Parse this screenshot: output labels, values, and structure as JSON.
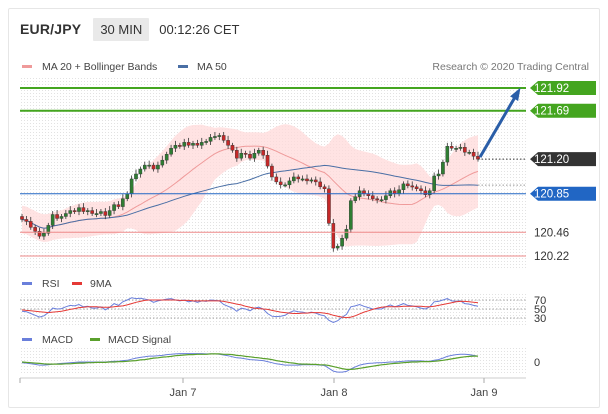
{
  "header": {
    "symbol": "EUR/JPY",
    "timeframe": "30 MIN",
    "time": "00:12:26 CET"
  },
  "legend": {
    "ma20_label": "MA 20 + Bollinger Bands",
    "ma50_label": "MA 50",
    "rsi_label": "RSI",
    "rsi_ma_label": "9MA",
    "macd_label": "MACD",
    "macd_signal_label": "MACD Signal",
    "credit": "Research © 2020 Trading Central"
  },
  "colors": {
    "bull": "#2e7d32",
    "bear": "#c62828",
    "ma20": "#ef9a9a",
    "band": "#ffdada",
    "ma50": "#4a6fa5",
    "resistance": "#44a51f",
    "pivot": "#2166c4",
    "support": "#ee8a8a",
    "arrow": "#2a5ea8",
    "current": "#333333",
    "rsi": "#6a7fdb",
    "rsi_ma": "#e53935",
    "macd": "#6a7fdb",
    "macd_signal": "#5aa02c"
  },
  "chart_data": [
    {
      "type": "candlestick",
      "series": [
        {
          "name": "MA 20 + Bollinger Bands"
        },
        {
          "name": "MA 50"
        }
      ],
      "y_ticks": [
        121.92,
        121.69,
        121.2,
        120.85,
        120.46,
        120.22
      ],
      "x_ticks": [
        "Jan 7",
        "Jan 8",
        "Jan 9"
      ],
      "levels": [
        {
          "value": 121.92,
          "label": "121.92",
          "kind": "resistance"
        },
        {
          "value": 121.69,
          "label": "121.69",
          "kind": "resistance"
        },
        {
          "value": 121.2,
          "label": "121.20",
          "kind": "current"
        },
        {
          "value": 120.85,
          "label": "120.85",
          "kind": "pivot"
        },
        {
          "value": 120.46,
          "label": "120.46",
          "kind": "support"
        },
        {
          "value": 120.22,
          "label": "120.22",
          "kind": "support"
        }
      ],
      "close": [
        120.59,
        120.57,
        120.51,
        120.47,
        120.42,
        120.45,
        120.53,
        120.64,
        120.6,
        120.62,
        120.65,
        120.68,
        120.67,
        120.71,
        120.67,
        120.68,
        120.65,
        120.65,
        120.67,
        120.63,
        120.68,
        120.74,
        120.72,
        120.8,
        120.85,
        121.0,
        121.05,
        121.1,
        121.14,
        121.14,
        121.1,
        121.14,
        121.19,
        121.25,
        121.31,
        121.34,
        121.33,
        121.37,
        121.34,
        121.36,
        121.34,
        121.37,
        121.38,
        121.42,
        121.43,
        121.44,
        121.39,
        121.34,
        121.29,
        121.21,
        121.26,
        121.25,
        121.21,
        121.26,
        121.29,
        121.24,
        121.13,
        121.02,
        120.97,
        120.94,
        120.94,
        120.98,
        121.02,
        121.0,
        121.0,
        120.98,
        120.99,
        120.97,
        120.92,
        120.9,
        120.55,
        120.3,
        120.32,
        120.4,
        120.49,
        120.78,
        120.82,
        120.88,
        120.85,
        120.83,
        120.8,
        120.79,
        120.79,
        120.83,
        120.88,
        120.85,
        120.89,
        120.95,
        120.93,
        120.92,
        120.9,
        120.88,
        120.84,
        120.88,
        121.03,
        121.05,
        121.17,
        121.33,
        121.31,
        121.31,
        121.32,
        121.27,
        121.27,
        121.23,
        121.2
      ],
      "rsi": {
        "ticks": [
          70,
          50,
          30
        ],
        "values": [
          45,
          44,
          40,
          36,
          32,
          35,
          42,
          52,
          50,
          51,
          55,
          58,
          57,
          60,
          55,
          56,
          52,
          52,
          55,
          48,
          54,
          62,
          58,
          66,
          70,
          75,
          73,
          74,
          72,
          70,
          65,
          68,
          70,
          72,
          73,
          70,
          68,
          70,
          66,
          68,
          65,
          68,
          67,
          70,
          69,
          68,
          60,
          56,
          52,
          45,
          52,
          50,
          46,
          52,
          54,
          50,
          40,
          34,
          33,
          34,
          36,
          42,
          46,
          44,
          43,
          41,
          43,
          41,
          37,
          35,
          25,
          20,
          24,
          32,
          38,
          55,
          57,
          60,
          56,
          53,
          50,
          50,
          50,
          55,
          59,
          55,
          58,
          62,
          58,
          57,
          55,
          52,
          50,
          55,
          66,
          67,
          70,
          73,
          68,
          67,
          68,
          62,
          61,
          58,
          56
        ],
        "ma9": [
          48,
          47,
          46,
          45,
          44,
          43,
          42,
          43,
          44,
          45,
          47,
          49,
          51,
          53,
          54,
          55,
          55,
          55,
          54,
          54,
          54,
          55,
          56,
          57,
          59,
          62,
          65,
          67,
          69,
          70,
          70,
          70,
          70,
          70,
          70,
          70,
          69,
          69,
          69,
          68,
          68,
          68,
          68,
          68,
          68,
          68,
          67,
          65,
          63,
          61,
          59,
          56,
          54,
          52,
          51,
          50,
          49,
          47,
          45,
          43,
          42,
          41,
          40,
          40,
          41,
          41,
          42,
          42,
          42,
          41,
          39,
          36,
          34,
          32,
          31,
          32,
          35,
          39,
          43,
          46,
          49,
          52,
          54,
          55,
          55,
          55,
          55,
          56,
          56,
          56,
          56,
          56,
          55,
          55,
          56,
          58,
          60,
          62,
          64,
          66,
          67,
          67,
          66,
          65,
          64
        ]
      },
      "macd": {
        "ticks": [
          0
        ],
        "values": [
          -0.02,
          -0.03,
          -0.05,
          -0.07,
          -0.09,
          -0.09,
          -0.08,
          -0.06,
          -0.05,
          -0.04,
          -0.03,
          -0.02,
          -0.01,
          0.0,
          0.0,
          0.0,
          0.0,
          0.0,
          0.0,
          0.0,
          0.01,
          0.02,
          0.02,
          0.04,
          0.05,
          0.08,
          0.11,
          0.13,
          0.15,
          0.17,
          0.17,
          0.18,
          0.19,
          0.21,
          0.22,
          0.23,
          0.24,
          0.24,
          0.24,
          0.24,
          0.24,
          0.24,
          0.23,
          0.23,
          0.23,
          0.22,
          0.2,
          0.18,
          0.15,
          0.12,
          0.11,
          0.09,
          0.07,
          0.06,
          0.05,
          0.04,
          0.01,
          -0.02,
          -0.05,
          -0.07,
          -0.09,
          -0.09,
          -0.09,
          -0.09,
          -0.08,
          -0.08,
          -0.08,
          -0.08,
          -0.09,
          -0.1,
          -0.18,
          -0.26,
          -0.29,
          -0.29,
          -0.27,
          -0.2,
          -0.14,
          -0.09,
          -0.06,
          -0.04,
          -0.03,
          -0.02,
          -0.02,
          -0.01,
          0.0,
          0.0,
          0.01,
          0.02,
          0.03,
          0.03,
          0.03,
          0.03,
          0.02,
          0.02,
          0.05,
          0.07,
          0.11,
          0.16,
          0.19,
          0.21,
          0.22,
          0.22,
          0.21,
          0.19,
          0.17
        ],
        "signal": [
          0.0,
          -0.01,
          -0.02,
          -0.03,
          -0.04,
          -0.05,
          -0.06,
          -0.06,
          -0.06,
          -0.06,
          -0.05,
          -0.05,
          -0.04,
          -0.03,
          -0.03,
          -0.02,
          -0.02,
          -0.01,
          -0.01,
          -0.01,
          0.0,
          0.0,
          0.01,
          0.01,
          0.02,
          0.03,
          0.04,
          0.06,
          0.07,
          0.09,
          0.11,
          0.12,
          0.14,
          0.15,
          0.16,
          0.18,
          0.19,
          0.2,
          0.21,
          0.21,
          0.22,
          0.22,
          0.22,
          0.23,
          0.23,
          0.23,
          0.22,
          0.22,
          0.21,
          0.19,
          0.18,
          0.16,
          0.15,
          0.13,
          0.12,
          0.1,
          0.09,
          0.07,
          0.04,
          0.02,
          0.0,
          -0.02,
          -0.03,
          -0.05,
          -0.06,
          -0.06,
          -0.07,
          -0.07,
          -0.08,
          -0.08,
          -0.1,
          -0.13,
          -0.16,
          -0.19,
          -0.21,
          -0.21,
          -0.2,
          -0.18,
          -0.16,
          -0.14,
          -0.12,
          -0.1,
          -0.08,
          -0.07,
          -0.05,
          -0.04,
          -0.03,
          -0.02,
          -0.01,
          0.0,
          0.0,
          0.01,
          0.01,
          0.01,
          0.02,
          0.03,
          0.05,
          0.07,
          0.09,
          0.11,
          0.13,
          0.15,
          0.16,
          0.17,
          0.17
        ]
      }
    }
  ]
}
